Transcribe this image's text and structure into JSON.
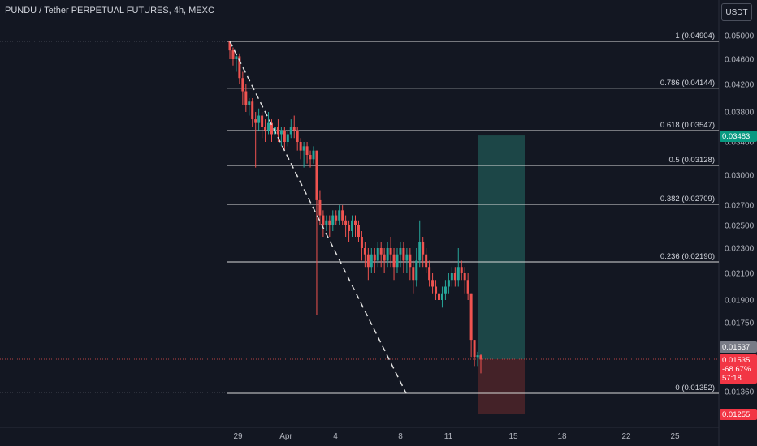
{
  "header": {
    "title": "PUNDU / Tether PERPETUAL FUTURES, 4h, MEXC",
    "currency": "USDT"
  },
  "colors": {
    "background": "#131722",
    "up": "#26a69a",
    "down": "#ef5350",
    "grid": "#1e222d",
    "fib_line": "#d9d9d9",
    "target_zone": "#1f4f4d",
    "stop_zone": "#4a2329",
    "text": "#b2b5be"
  },
  "chart_data": {
    "type": "candlestick",
    "y_ticks": [
      "0.05000",
      "0.04600",
      "0.04200",
      "0.03800",
      "0.03400",
      "0.03000",
      "0.02700",
      "0.02500",
      "0.02300",
      "0.02100",
      "0.01900",
      "0.01750",
      "0.01360"
    ],
    "x_ticks": [
      "29",
      "Apr",
      "4",
      "8",
      "11",
      "15",
      "18",
      "22",
      "25"
    ],
    "fib_levels": [
      {
        "ratio": "1",
        "price": 0.04904,
        "label": "1 (0.04904)"
      },
      {
        "ratio": "0.786",
        "price": 0.04144,
        "label": "0.786 (0.04144)"
      },
      {
        "ratio": "0.618",
        "price": 0.03547,
        "label": "0.618 (0.03547)"
      },
      {
        "ratio": "0.5",
        "price": 0.03128,
        "label": "0.5 (0.03128)"
      },
      {
        "ratio": "0.382",
        "price": 0.02709,
        "label": "0.382 (0.02709)"
      },
      {
        "ratio": "0.236",
        "price": 0.0219,
        "label": "0.236 (0.02190)"
      },
      {
        "ratio": "0",
        "price": 0.01352,
        "label": "0 (0.01352)"
      }
    ],
    "price_badges": {
      "target": "0.03483",
      "entry": "0.01537",
      "last_price": "0.01535",
      "change": "-68.67%",
      "countdown": "57:18",
      "stop": "0.01255"
    },
    "position_zone": {
      "entry": 0.01537,
      "target": 0.03483,
      "stop": 0.01255
    },
    "candles": [
      [
        0.04904,
        0.0475,
        0.04904,
        0.046
      ],
      [
        0.0475,
        0.046,
        0.048,
        0.045
      ],
      [
        0.046,
        0.0465,
        0.047,
        0.044
      ],
      [
        0.0465,
        0.043,
        0.047,
        0.042
      ],
      [
        0.043,
        0.041,
        0.044,
        0.039
      ],
      [
        0.041,
        0.039,
        0.042,
        0.038
      ],
      [
        0.039,
        0.0395,
        0.04,
        0.0375
      ],
      [
        0.0395,
        0.037,
        0.04,
        0.036
      ],
      [
        0.037,
        0.0365,
        0.038,
        0.031
      ],
      [
        0.0365,
        0.0375,
        0.0385,
        0.0355
      ],
      [
        0.0375,
        0.036,
        0.038,
        0.0345
      ],
      [
        0.036,
        0.0355,
        0.037,
        0.034
      ],
      [
        0.0355,
        0.0365,
        0.038,
        0.035
      ],
      [
        0.0365,
        0.035,
        0.037,
        0.034
      ],
      [
        0.035,
        0.036,
        0.0365,
        0.0345
      ],
      [
        0.036,
        0.035,
        0.037,
        0.034
      ],
      [
        0.035,
        0.0355,
        0.036,
        0.0335
      ],
      [
        0.0355,
        0.034,
        0.036,
        0.033
      ],
      [
        0.034,
        0.035,
        0.0355,
        0.0335
      ],
      [
        0.035,
        0.036,
        0.037,
        0.0345
      ],
      [
        0.036,
        0.0355,
        0.0375,
        0.0345
      ],
      [
        0.0355,
        0.034,
        0.036,
        0.033
      ],
      [
        0.034,
        0.033,
        0.0345,
        0.032
      ],
      [
        0.033,
        0.0335,
        0.034,
        0.031
      ],
      [
        0.0335,
        0.0325,
        0.034,
        0.0315
      ],
      [
        0.0325,
        0.032,
        0.033,
        0.031
      ],
      [
        0.032,
        0.033,
        0.0335,
        0.0315
      ],
      [
        0.033,
        0.0275,
        0.033,
        0.018
      ],
      [
        0.0275,
        0.026,
        0.0285,
        0.025
      ],
      [
        0.026,
        0.025,
        0.0265,
        0.024
      ],
      [
        0.025,
        0.0255,
        0.026,
        0.0245
      ],
      [
        0.0255,
        0.025,
        0.026,
        0.024
      ],
      [
        0.025,
        0.026,
        0.0265,
        0.0245
      ],
      [
        0.026,
        0.0255,
        0.0265,
        0.025
      ],
      [
        0.0255,
        0.0265,
        0.027,
        0.025
      ],
      [
        0.0265,
        0.0255,
        0.027,
        0.025
      ],
      [
        0.0255,
        0.025,
        0.026,
        0.024
      ],
      [
        0.025,
        0.0245,
        0.0255,
        0.0235
      ],
      [
        0.0245,
        0.0255,
        0.026,
        0.024
      ],
      [
        0.0255,
        0.025,
        0.026,
        0.024
      ],
      [
        0.025,
        0.024,
        0.0255,
        0.0235
      ],
      [
        0.024,
        0.023,
        0.0245,
        0.022
      ],
      [
        0.023,
        0.0225,
        0.0235,
        0.0215
      ],
      [
        0.0225,
        0.0215,
        0.023,
        0.0205
      ],
      [
        0.0215,
        0.0225,
        0.023,
        0.021
      ],
      [
        0.0225,
        0.022,
        0.023,
        0.021
      ],
      [
        0.022,
        0.023,
        0.0235,
        0.0215
      ],
      [
        0.023,
        0.0225,
        0.0235,
        0.0215
      ],
      [
        0.0225,
        0.022,
        0.023,
        0.021
      ],
      [
        0.022,
        0.023,
        0.0235,
        0.0215
      ],
      [
        0.023,
        0.0225,
        0.024,
        0.0215
      ],
      [
        0.0225,
        0.0215,
        0.023,
        0.0205
      ],
      [
        0.0215,
        0.0225,
        0.023,
        0.021
      ],
      [
        0.0225,
        0.023,
        0.0235,
        0.0215
      ],
      [
        0.023,
        0.022,
        0.0235,
        0.021
      ],
      [
        0.022,
        0.0225,
        0.023,
        0.021
      ],
      [
        0.0225,
        0.0215,
        0.023,
        0.0205
      ],
      [
        0.0215,
        0.0205,
        0.022,
        0.0195
      ],
      [
        0.0205,
        0.022,
        0.023,
        0.02
      ],
      [
        0.022,
        0.0235,
        0.0255,
        0.0215
      ],
      [
        0.0235,
        0.0225,
        0.024,
        0.0215
      ],
      [
        0.0225,
        0.0215,
        0.023,
        0.021
      ],
      [
        0.0215,
        0.0205,
        0.022,
        0.02
      ],
      [
        0.0205,
        0.02,
        0.021,
        0.0195
      ],
      [
        0.02,
        0.0195,
        0.0205,
        0.019
      ],
      [
        0.0195,
        0.019,
        0.02,
        0.0185
      ],
      [
        0.019,
        0.0195,
        0.02,
        0.0185
      ],
      [
        0.0195,
        0.02,
        0.0205,
        0.019
      ],
      [
        0.02,
        0.0205,
        0.021,
        0.0195
      ],
      [
        0.0205,
        0.021,
        0.0215,
        0.02
      ],
      [
        0.021,
        0.0205,
        0.0215,
        0.02
      ],
      [
        0.0205,
        0.0215,
        0.023,
        0.02
      ],
      [
        0.0215,
        0.021,
        0.022,
        0.0205
      ],
      [
        0.021,
        0.0205,
        0.0215,
        0.0195
      ],
      [
        0.0205,
        0.0195,
        0.021,
        0.019
      ],
      [
        0.0195,
        0.0165,
        0.0195,
        0.0155
      ],
      [
        0.0165,
        0.0155,
        0.0165,
        0.015
      ],
      [
        0.0155,
        0.0156,
        0.0158,
        0.015
      ],
      [
        0.0156,
        0.01535,
        0.0157,
        0.0146
      ]
    ]
  }
}
